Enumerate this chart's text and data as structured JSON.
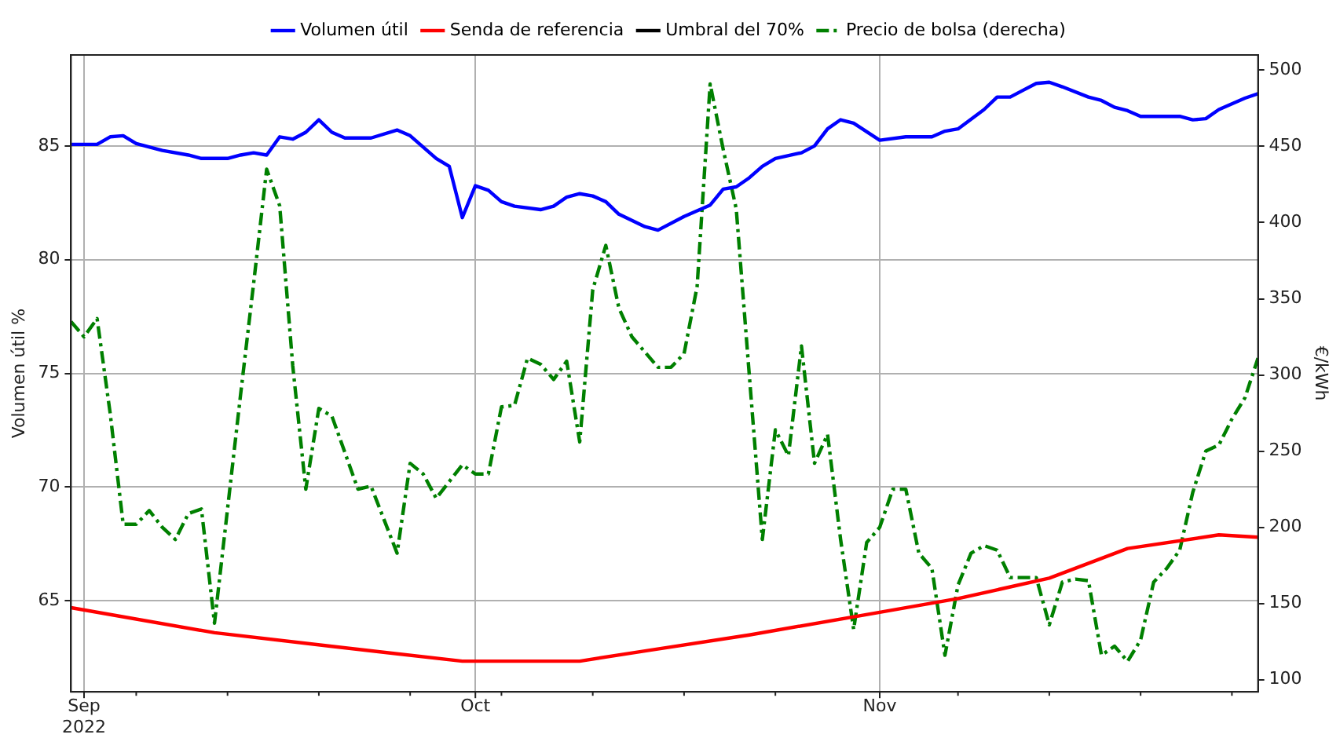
{
  "chart_data": {
    "type": "line",
    "ylabel": "Volumen útil %",
    "y2label": "€/kWh",
    "legend": "top",
    "grid": true,
    "xlim": [
      "2022-08-31",
      "2022-11-30"
    ],
    "xticks": [
      {
        "value": "2022-09-01",
        "label": "Sep\n2022"
      },
      {
        "value": "2022-09-05",
        "label": null
      },
      {
        "value": "2022-09-12",
        "label": null
      },
      {
        "value": "2022-09-19",
        "label": null
      },
      {
        "value": "2022-09-26",
        "label": null
      },
      {
        "value": "2022-10-01",
        "label": "Oct"
      },
      {
        "value": "2022-10-03",
        "label": null
      },
      {
        "value": "2022-10-10",
        "label": null
      },
      {
        "value": "2022-10-17",
        "label": null
      },
      {
        "value": "2022-10-24",
        "label": null
      },
      {
        "value": "2022-11-01",
        "label": "Nov"
      },
      {
        "value": "2022-11-07",
        "label": null
      },
      {
        "value": "2022-11-14",
        "label": null
      },
      {
        "value": "2022-11-21",
        "label": null
      },
      {
        "value": "2022-11-28",
        "label": null
      }
    ],
    "ylim": [
      61,
      89
    ],
    "yticks": [
      65,
      70,
      75,
      80,
      85
    ],
    "y2lim": [
      92,
      510
    ],
    "y2ticks": [
      100,
      150,
      200,
      250,
      300,
      350,
      400,
      450,
      500
    ],
    "series": [
      {
        "name": "Volumen útil",
        "color": "#0000ff",
        "line_style": "solid",
        "x": [
          "2022-08-31",
          "2022-09-02",
          "2022-09-03",
          "2022-09-04",
          "2022-09-05",
          "2022-09-07",
          "2022-09-09",
          "2022-09-10",
          "2022-09-12",
          "2022-09-13",
          "2022-09-14",
          "2022-09-15",
          "2022-09-16",
          "2022-09-17",
          "2022-09-18",
          "2022-09-19",
          "2022-09-20",
          "2022-09-21",
          "2022-09-23",
          "2022-09-25",
          "2022-09-26",
          "2022-09-27",
          "2022-09-28",
          "2022-09-29",
          "2022-09-30",
          "2022-10-01",
          "2022-10-02",
          "2022-10-03",
          "2022-10-04",
          "2022-10-06",
          "2022-10-07",
          "2022-10-08",
          "2022-10-09",
          "2022-10-10",
          "2022-10-11",
          "2022-10-12",
          "2022-10-14",
          "2022-10-15",
          "2022-10-17",
          "2022-10-19",
          "2022-10-20",
          "2022-10-21",
          "2022-10-22",
          "2022-10-23",
          "2022-10-24",
          "2022-10-26",
          "2022-10-27",
          "2022-10-28",
          "2022-10-29",
          "2022-10-30",
          "2022-11-01",
          "2022-11-03",
          "2022-11-05",
          "2022-11-06",
          "2022-11-07",
          "2022-11-09",
          "2022-11-10",
          "2022-11-11",
          "2022-11-12",
          "2022-11-13",
          "2022-11-14",
          "2022-11-15",
          "2022-11-17",
          "2022-11-18",
          "2022-11-19",
          "2022-11-20",
          "2022-11-21",
          "2022-11-24",
          "2022-11-25",
          "2022-11-26",
          "2022-11-27",
          "2022-11-29",
          "2022-11-30"
        ],
        "values": [
          85.07,
          85.07,
          85.4,
          85.45,
          85.1,
          84.8,
          84.6,
          84.45,
          84.45,
          84.6,
          84.7,
          84.6,
          85.4,
          85.3,
          85.6,
          86.15,
          85.6,
          85.35,
          85.35,
          85.7,
          85.45,
          84.95,
          84.45,
          84.1,
          81.85,
          83.25,
          83.05,
          82.55,
          82.35,
          82.2,
          82.35,
          82.75,
          82.9,
          82.8,
          82.55,
          82.0,
          81.45,
          81.3,
          81.9,
          82.4,
          83.1,
          83.2,
          83.6,
          84.1,
          84.45,
          84.7,
          85.0,
          85.75,
          86.15,
          86.0,
          85.25,
          85.4,
          85.4,
          85.65,
          85.75,
          86.6,
          87.15,
          87.15,
          87.45,
          87.75,
          87.8,
          87.6,
          87.15,
          87.0,
          86.7,
          86.55,
          86.3,
          86.3,
          86.15,
          86.2,
          86.6,
          87.1,
          87.3
        ]
      },
      {
        "name": "Senda de referencia",
        "color": "#ff0000",
        "line_style": "solid",
        "x": [
          "2022-08-31",
          "2022-09-11",
          "2022-09-20",
          "2022-09-30",
          "2022-10-09",
          "2022-10-14",
          "2022-10-22",
          "2022-11-01",
          "2022-11-07",
          "2022-11-14",
          "2022-11-20",
          "2022-11-27",
          "2022-11-30"
        ],
        "values": [
          64.7,
          63.6,
          63.0,
          62.35,
          62.35,
          62.8,
          63.5,
          64.5,
          65.1,
          66.0,
          67.3,
          67.9,
          67.8
        ]
      },
      {
        "name": "Umbral del 70%",
        "color": "#000000",
        "line_style": "solid"
      },
      {
        "name": "Precio de bolsa (derecha)",
        "color": "#008000",
        "axis": "y2",
        "line_style": "dashed",
        "x": [
          "2022-08-31",
          "2022-09-01",
          "2022-09-02",
          "2022-09-03",
          "2022-09-04",
          "2022-09-05",
          "2022-09-06",
          "2022-09-07",
          "2022-09-08",
          "2022-09-09",
          "2022-09-10",
          "2022-09-11",
          "2022-09-12",
          "2022-09-13",
          "2022-09-14",
          "2022-09-15",
          "2022-09-16",
          "2022-09-17",
          "2022-09-18",
          "2022-09-19",
          "2022-09-20",
          "2022-09-22",
          "2022-09-23",
          "2022-09-24",
          "2022-09-25",
          "2022-09-26",
          "2022-09-27",
          "2022-09-28",
          "2022-09-29",
          "2022-09-30",
          "2022-10-01",
          "2022-10-02",
          "2022-10-03",
          "2022-10-04",
          "2022-10-05",
          "2022-10-06",
          "2022-10-07",
          "2022-10-08",
          "2022-10-09",
          "2022-10-10",
          "2022-10-11",
          "2022-10-12",
          "2022-10-13",
          "2022-10-15",
          "2022-10-16",
          "2022-10-17",
          "2022-10-18",
          "2022-10-19",
          "2022-10-20",
          "2022-10-21",
          "2022-10-22",
          "2022-10-23",
          "2022-10-24",
          "2022-10-25",
          "2022-10-26",
          "2022-10-27",
          "2022-10-28",
          "2022-10-29",
          "2022-10-30",
          "2022-10-31",
          "2022-11-01",
          "2022-11-02",
          "2022-11-03",
          "2022-11-04",
          "2022-11-05",
          "2022-11-06",
          "2022-11-07",
          "2022-11-08",
          "2022-11-09",
          "2022-11-10",
          "2022-11-11",
          "2022-11-13",
          "2022-11-14",
          "2022-11-15",
          "2022-11-16",
          "2022-11-17",
          "2022-11-18",
          "2022-11-19",
          "2022-11-20",
          "2022-11-21",
          "2022-11-22",
          "2022-11-23",
          "2022-11-24",
          "2022-11-25",
          "2022-11-26",
          "2022-11-27",
          "2022-11-28",
          "2022-11-29",
          "2022-11-30"
        ],
        "values": [
          335,
          325,
          337,
          275,
          202,
          202,
          211,
          200,
          192,
          209,
          212,
          137,
          212,
          287,
          360,
          435,
          411,
          306,
          225,
          278,
          273,
          225,
          227,
          205,
          183,
          242,
          235,
          219,
          230,
          241,
          235,
          235,
          279,
          280,
          311,
          307,
          297,
          309,
          256,
          356,
          385,
          344,
          325,
          305,
          305,
          314,
          358,
          491,
          448,
          409,
          300,
          192,
          264,
          247,
          319,
          242,
          261,
          192,
          133,
          190,
          200,
          225,
          225,
          183,
          173,
          116,
          162,
          183,
          188,
          185,
          167,
          167,
          136,
          164,
          166,
          165,
          116,
          122,
          112,
          126,
          164,
          173,
          185,
          223,
          250,
          254,
          271,
          285,
          311
        ]
      }
    ]
  }
}
